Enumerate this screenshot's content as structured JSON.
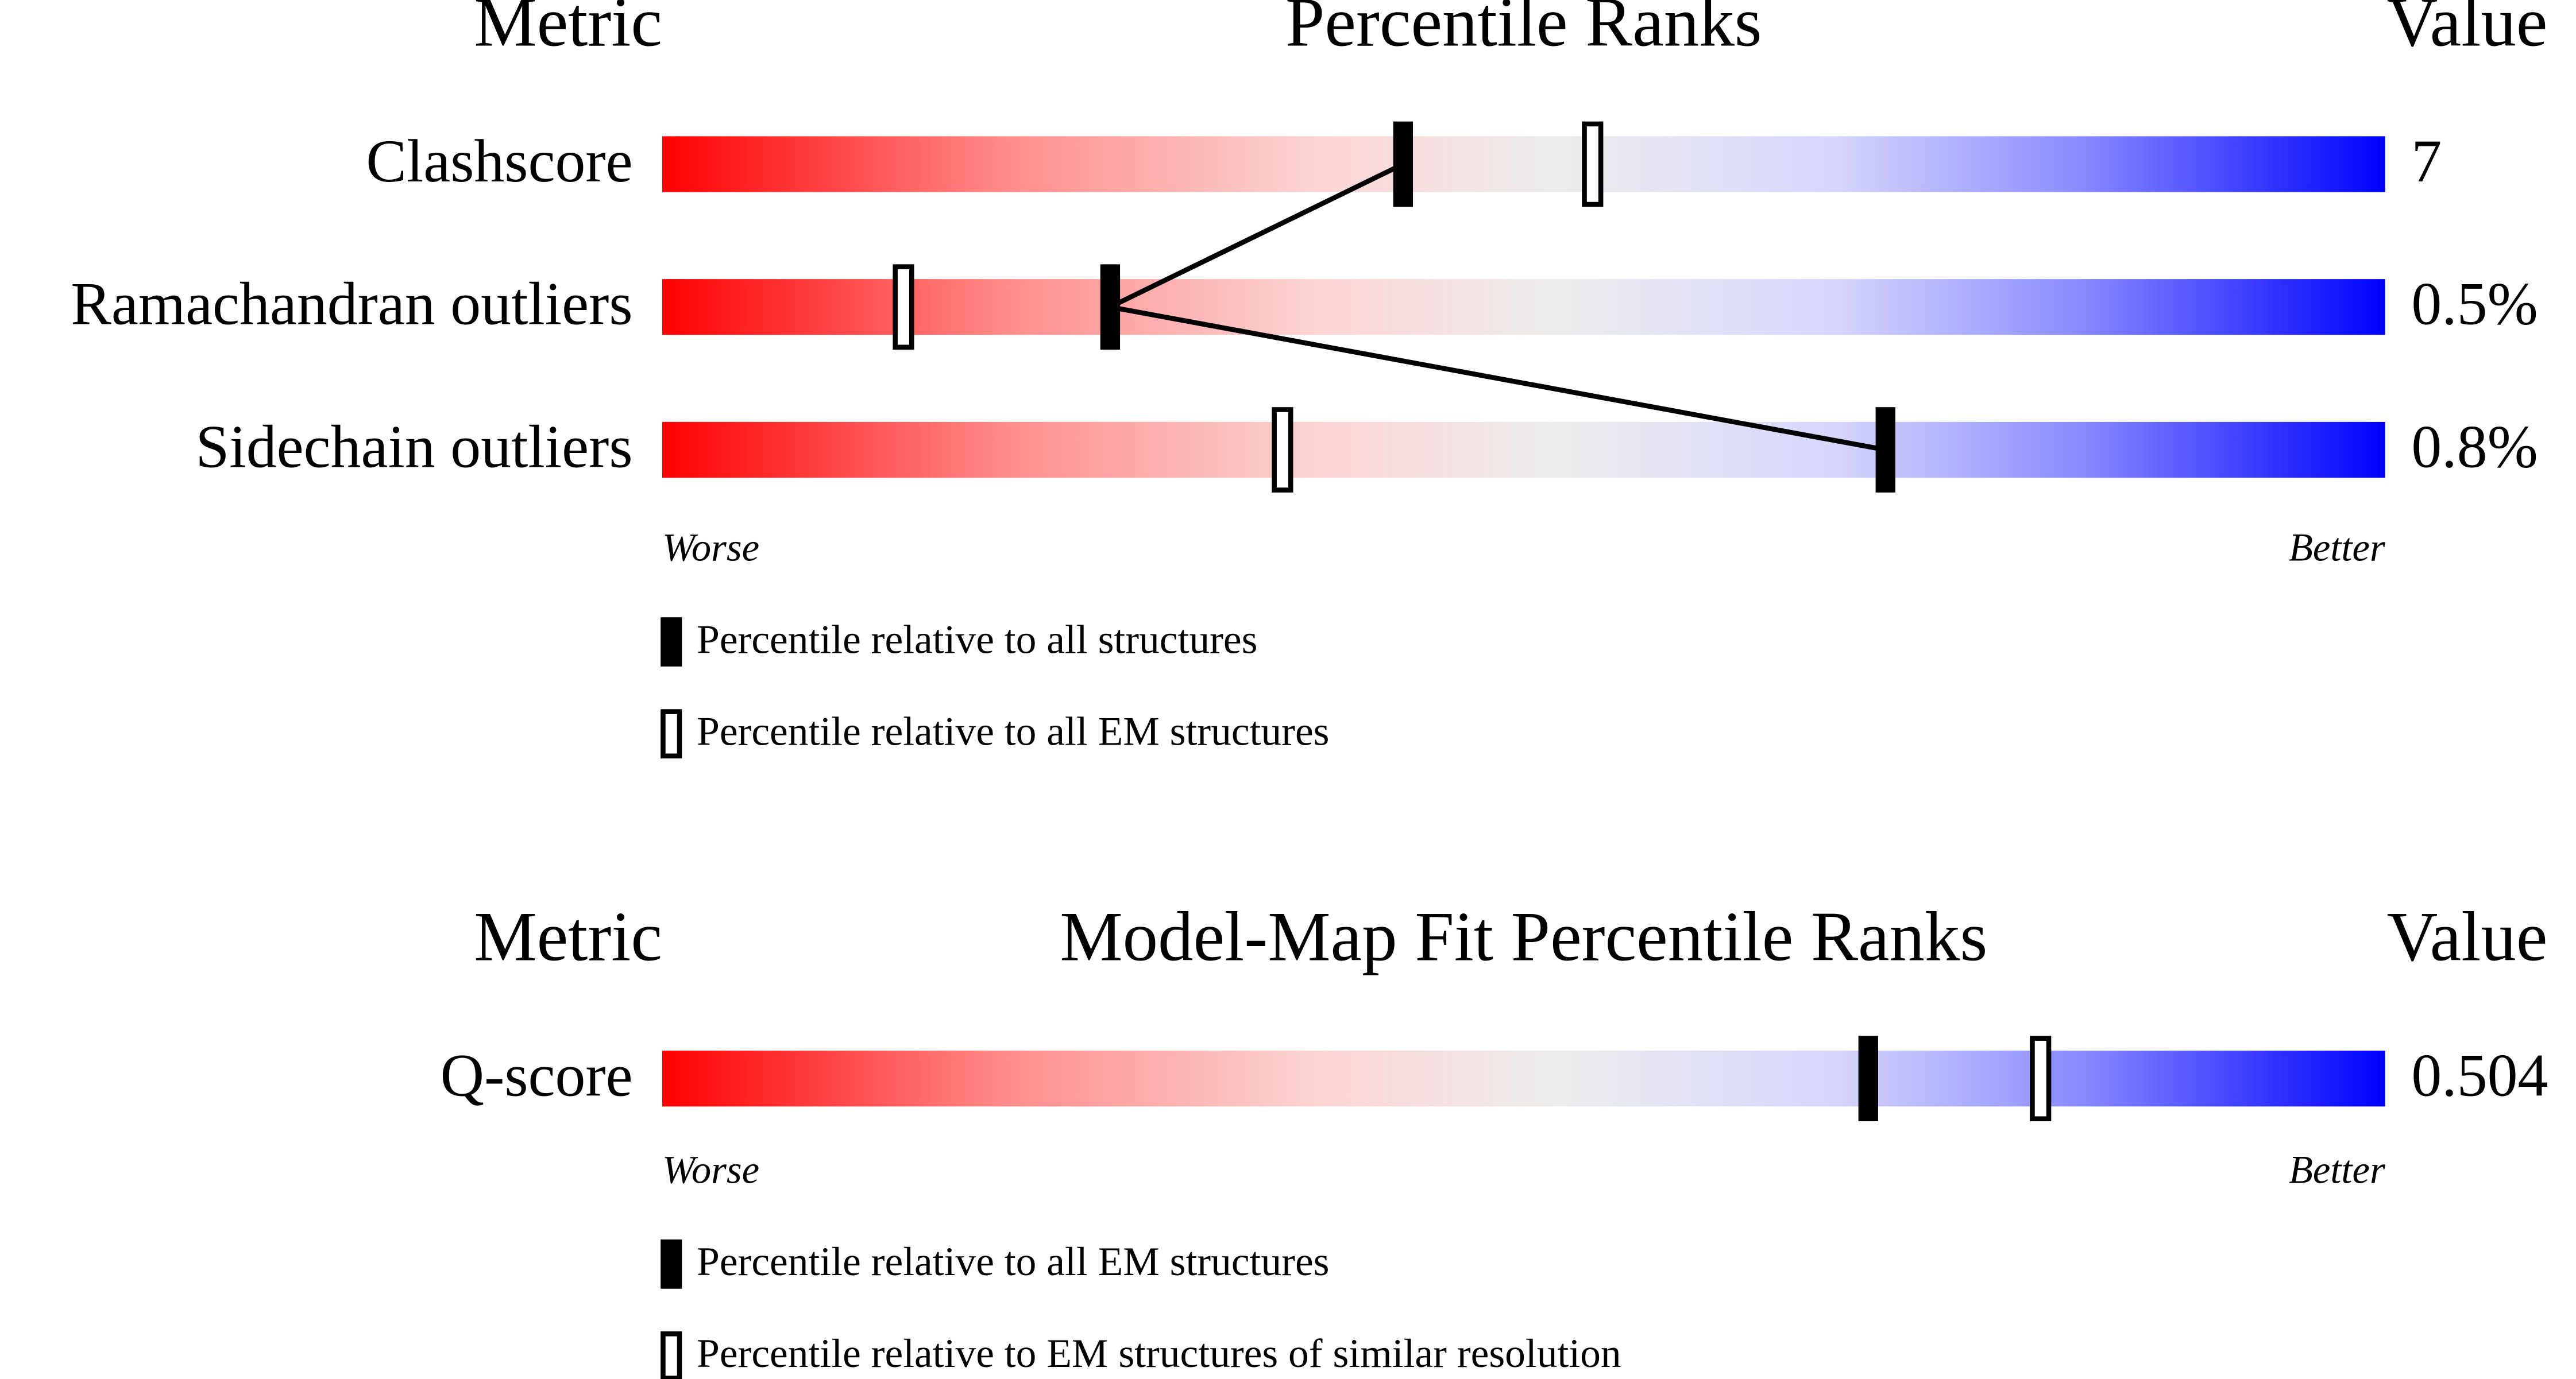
{
  "chart_data": [
    {
      "type": "slider",
      "headers": {
        "metric": "Metric",
        "title": "Percentile Ranks",
        "value": "Value"
      },
      "categories": [
        "Clashscore",
        "Ramachandran outliers",
        "Sidechain outliers"
      ],
      "metric_values": [
        "7",
        "0.5%",
        "0.8%"
      ],
      "series": [
        {
          "name": "Percentile relative to all structures",
          "style": "solid",
          "color": "#000000",
          "values": [
            43,
            26,
            71
          ]
        },
        {
          "name": "Percentile relative to all EM structures",
          "style": "open",
          "color": "#000000",
          "values": [
            54,
            14,
            36
          ]
        }
      ],
      "xlim": [
        0,
        100
      ],
      "axis_labels": {
        "low": "Worse",
        "high": "Better"
      },
      "connect_series": 0
    },
    {
      "type": "slider",
      "headers": {
        "metric": "Metric",
        "title": "Model-Map Fit Percentile Ranks",
        "value": "Value"
      },
      "categories": [
        "Q-score"
      ],
      "metric_values": [
        "0.504"
      ],
      "series": [
        {
          "name": "Percentile relative to all EM structures",
          "style": "solid",
          "color": "#000000",
          "values": [
            70
          ]
        },
        {
          "name": "Percentile relative to EM structures of similar resolution",
          "style": "open",
          "color": "#000000",
          "values": [
            80
          ]
        }
      ],
      "xlim": [
        0,
        100
      ],
      "axis_labels": {
        "low": "Worse",
        "high": "Better"
      },
      "connect_series": 0
    }
  ]
}
